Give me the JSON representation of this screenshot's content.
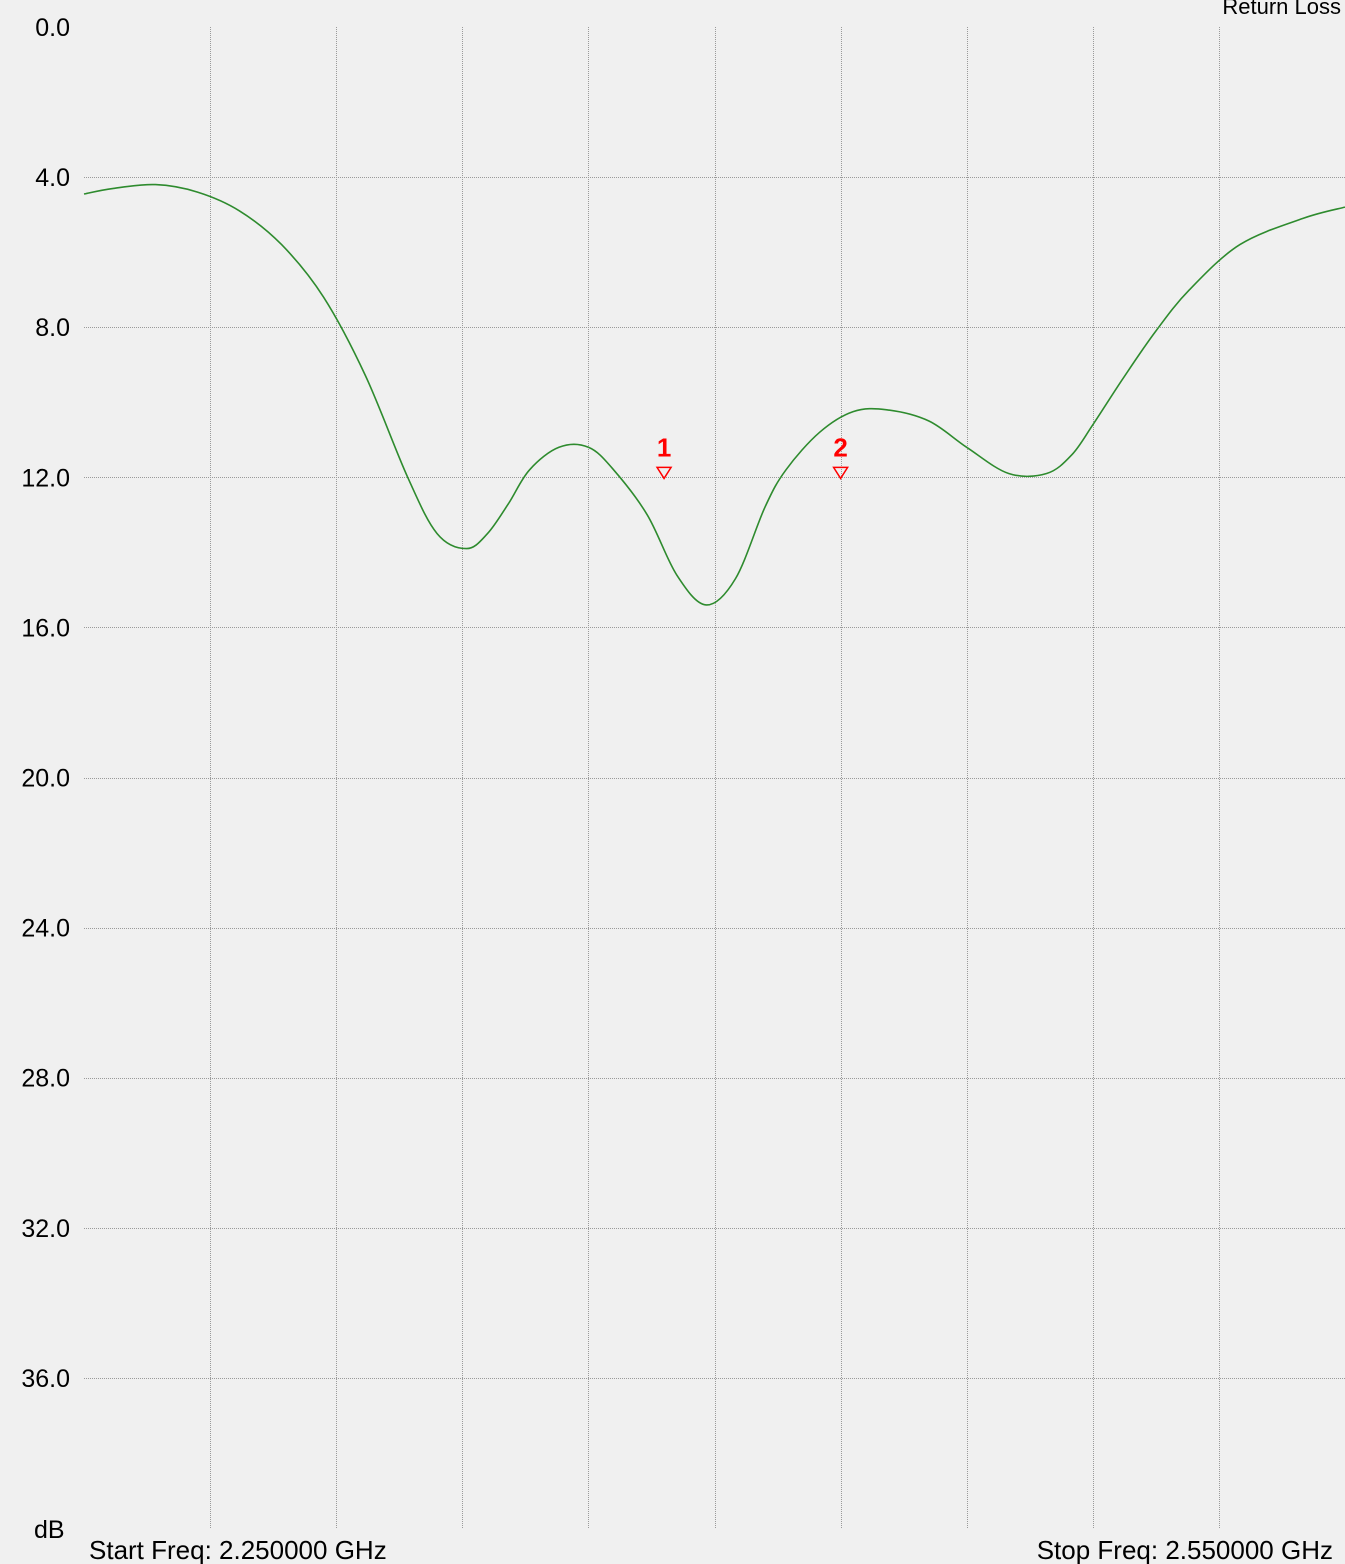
{
  "colors": {
    "background": "#f0f0f0",
    "grid": "#9a9a9a",
    "trace": "#2e8b2e",
    "marker": "#ff0000",
    "text": "#000000"
  },
  "chart_data": {
    "type": "line",
    "title": "Return Loss",
    "ylabel": "dB",
    "start_label": "Start Freq: 2.250000 GHz",
    "stop_label": "Stop Freq: 2.550000 GHz",
    "xlim": [
      2.25,
      2.55
    ],
    "ylim": [
      0,
      40
    ],
    "y_inverted": true,
    "grid": true,
    "y_ticks": [
      "0.0",
      "4.0",
      "8.0",
      "12.0",
      "16.0",
      "20.0",
      "24.0",
      "28.0",
      "32.0",
      "36.0"
    ],
    "y_tick_values": [
      0,
      4,
      8,
      12,
      16,
      20,
      24,
      28,
      32,
      36
    ],
    "x_grid_values": [
      2.28,
      2.31,
      2.34,
      2.37,
      2.4,
      2.43,
      2.46,
      2.49,
      2.52
    ],
    "series": [
      {
        "x": [
          2.25,
          2.257,
          2.267,
          2.277,
          2.287,
          2.297,
          2.307,
          2.317,
          2.327,
          2.334,
          2.341,
          2.346,
          2.351,
          2.356,
          2.363,
          2.37,
          2.376,
          2.384,
          2.391,
          2.398,
          2.405,
          2.412,
          2.417,
          2.425,
          2.433,
          2.441,
          2.451,
          2.46,
          2.47,
          2.479,
          2.485,
          2.49,
          2.497,
          2.505,
          2.513,
          2.525,
          2.54,
          2.55
        ],
        "y": [
          4.45,
          4.3,
          4.2,
          4.4,
          4.9,
          5.8,
          7.2,
          9.3,
          12.0,
          13.5,
          13.9,
          13.5,
          12.7,
          11.8,
          11.2,
          11.2,
          11.8,
          13.0,
          14.6,
          15.4,
          14.7,
          12.8,
          11.8,
          10.8,
          10.25,
          10.2,
          10.5,
          11.2,
          11.9,
          11.9,
          11.4,
          10.6,
          9.4,
          8.1,
          7.0,
          5.8,
          5.1,
          4.8
        ]
      }
    ],
    "markers": [
      {
        "label": "1",
        "x": 2.388,
        "y": 11.95
      },
      {
        "label": "2",
        "x": 2.43,
        "y": 11.95
      }
    ]
  }
}
